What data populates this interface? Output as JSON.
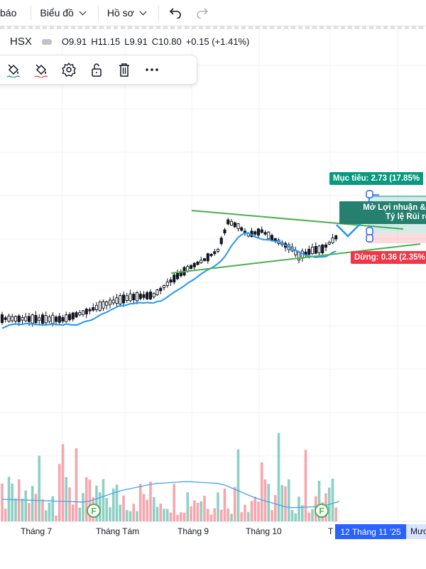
{
  "toolbar_top": {
    "item1_label": "báo",
    "item2_label": "Biểu đồ",
    "item3_label": "Hồ sơ",
    "undo_icon": "undo-icon",
    "redo_icon": "redo-icon"
  },
  "legend": {
    "symbol": "HSX",
    "open": "O9.91",
    "high": "H11.15",
    "low": "L9.91",
    "close": "C10.80",
    "change": "+0.15 (+1.41%)"
  },
  "drawing_toolbar": {
    "icons": [
      "paint-bucket-icon",
      "paint-bucket-red-icon",
      "gear-icon",
      "unlock-icon",
      "trash-icon",
      "more-icon"
    ]
  },
  "chart": {
    "target_label": "Mục tiêu: 2.73 (17.85%",
    "stop_label": "Dừng: 0.36 (2.35%",
    "open_pl_line1": "Mở Lợi nhuận & Thu",
    "open_pl_line2": "Tỷ lệ Rủi ro/Lợ",
    "earnings_marker": "F",
    "x_labels": [
      "Tháng 7",
      "Tháng Tám",
      "Tháng 9",
      "Tháng 10",
      "T"
    ],
    "date_badge": "12 Tháng 11 '25",
    "date_badge_tail": "Mươ",
    "colors": {
      "up": "#089981",
      "down": "#f23645",
      "ma": "#2196f3",
      "trend": "#4caf50",
      "accent": "#2962ff",
      "volume_up": "#8ed0c3",
      "volume_down": "#f7a6ad"
    }
  }
}
